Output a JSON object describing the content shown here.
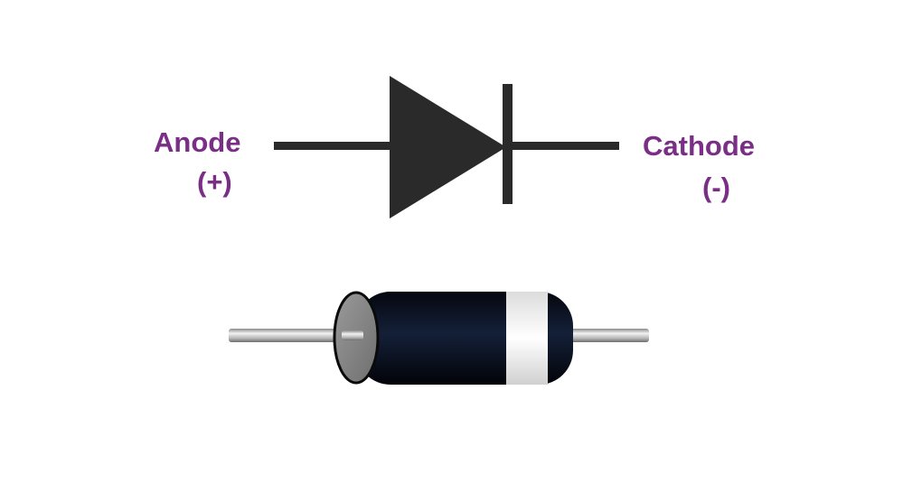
{
  "labels": {
    "anode": "Anode",
    "anode_polarity": "(+)",
    "cathode": "Cathode",
    "cathode_polarity": "(-)"
  },
  "colors": {
    "label": "#7a2e86",
    "symbol": "#2a2a2a",
    "body": "#0c0f1c",
    "band": "#f4f4f4",
    "end_cap": "#8a8a8a",
    "lead": "#bdbdbd"
  },
  "icons": {
    "symbol": "diode-symbol-icon",
    "component": "diode-component-icon"
  }
}
